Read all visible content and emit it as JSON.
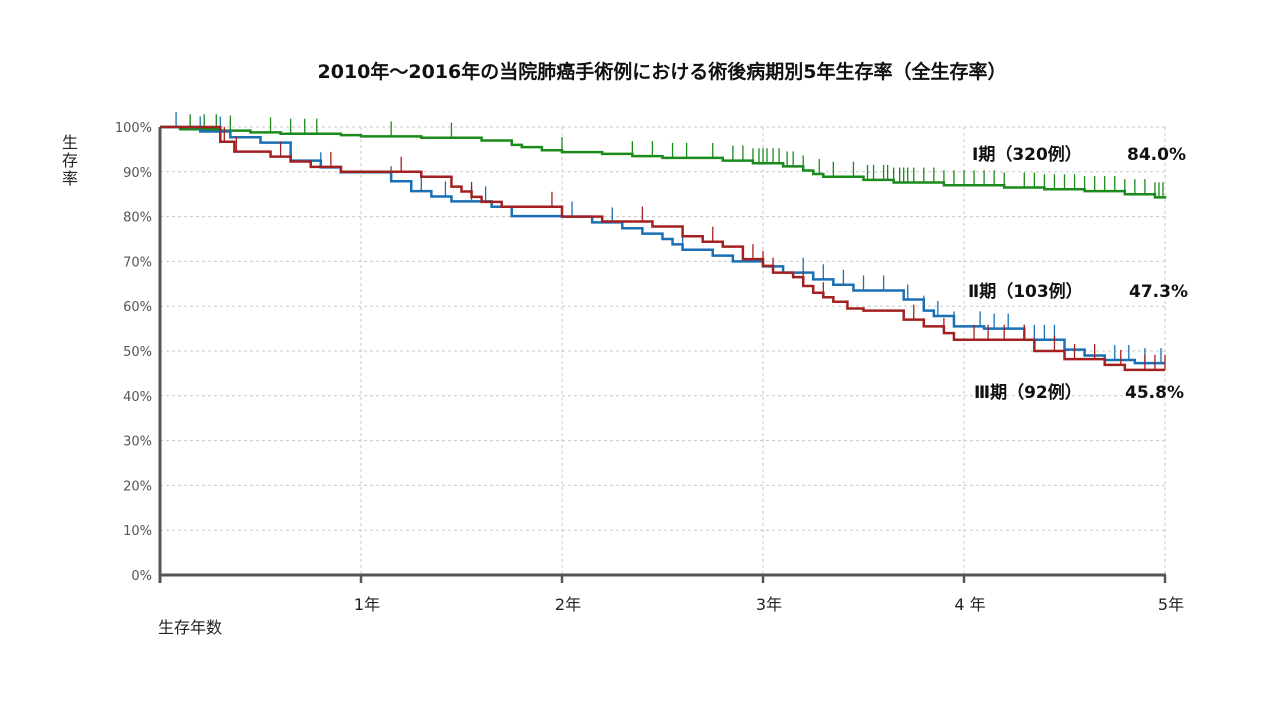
{
  "chart_data": {
    "type": "line",
    "title": "2010年～2016年の当院肺癌手術例における術後病期別5年生存率（全生存率）",
    "ylabel": "生存率",
    "xlabel": "生存年数",
    "ylim": [
      0,
      100
    ],
    "xlim": [
      0,
      5
    ],
    "y_ticks": [
      "0%",
      "10%",
      "20%",
      "30%",
      "40%",
      "50%",
      "60%",
      "70%",
      "80%",
      "90%",
      "100%"
    ],
    "x_ticks": [
      {
        "value": 1,
        "label": "1年"
      },
      {
        "value": 2,
        "label": "2年"
      },
      {
        "value": 3,
        "label": "3年"
      },
      {
        "value": 4,
        "label": "4 年"
      },
      {
        "value": 5,
        "label": "5年"
      }
    ],
    "grid": true,
    "series": [
      {
        "name": "Ⅰ期（320例）",
        "color": "#1a8a1a",
        "final_rate": "84.0%",
        "x": [
          0,
          0.1,
          0.3,
          0.45,
          0.6,
          0.9,
          1.0,
          1.3,
          1.6,
          1.75,
          1.8,
          1.9,
          2.0,
          2.2,
          2.35,
          2.5,
          2.8,
          2.95,
          3.1,
          3.2,
          3.25,
          3.3,
          3.5,
          3.65,
          3.9,
          4.2,
          4.4,
          4.6,
          4.8,
          4.95,
          5.0
        ],
        "y": [
          100,
          99.5,
          99.2,
          98.8,
          98.5,
          98.2,
          97.9,
          97.6,
          97.0,
          96.0,
          95.5,
          94.8,
          94.4,
          94.0,
          93.5,
          93.1,
          92.5,
          91.9,
          91.2,
          90.3,
          89.5,
          88.9,
          88.2,
          87.6,
          87.0,
          86.5,
          86.1,
          85.7,
          85.0,
          84.3,
          84.0
        ],
        "censor_x": [
          0.15,
          0.22,
          0.28,
          0.35,
          0.55,
          0.65,
          0.72,
          0.78,
          1.15,
          1.45,
          2.0,
          2.35,
          2.45,
          2.55,
          2.62,
          2.75,
          2.85,
          2.9,
          2.95,
          2.98,
          3.0,
          3.02,
          3.05,
          3.08,
          3.12,
          3.15,
          3.2,
          3.28,
          3.35,
          3.45,
          3.52,
          3.55,
          3.6,
          3.62,
          3.65,
          3.68,
          3.7,
          3.72,
          3.75,
          3.8,
          3.85,
          3.9,
          3.95,
          4.0,
          4.05,
          4.1,
          4.15,
          4.2,
          4.3,
          4.35,
          4.4,
          4.45,
          4.5,
          4.55,
          4.6,
          4.65,
          4.7,
          4.75,
          4.8,
          4.85,
          4.9,
          4.95,
          4.97,
          4.99
        ]
      },
      {
        "name": "Ⅱ期（103例）",
        "color": "#1a6fb5",
        "final_rate": "47.3%",
        "x": [
          0,
          0.2,
          0.35,
          0.5,
          0.65,
          0.8,
          0.9,
          1.0,
          1.15,
          1.25,
          1.35,
          1.45,
          1.55,
          1.65,
          1.75,
          2.0,
          2.15,
          2.3,
          2.4,
          2.5,
          2.55,
          2.6,
          2.75,
          2.85,
          3.0,
          3.1,
          3.25,
          3.35,
          3.45,
          3.55,
          3.7,
          3.8,
          3.85,
          3.95,
          4.1,
          4.3,
          4.5,
          4.6,
          4.7,
          4.85,
          5.0
        ],
        "y": [
          100,
          99,
          97.7,
          96.5,
          92.5,
          91,
          89.9,
          89.9,
          87.9,
          85.7,
          84.5,
          83.4,
          83.4,
          82.2,
          80.1,
          80.0,
          78.7,
          77.4,
          76.2,
          75.0,
          73.8,
          72.6,
          71.3,
          70.0,
          68.9,
          67.5,
          66.0,
          64.8,
          63.5,
          63.5,
          61.5,
          59.0,
          57.8,
          55.5,
          55.0,
          52.5,
          50.3,
          49.0,
          48.0,
          47.3,
          47.3
        ],
        "censor_x": [
          0.08,
          0.2,
          0.3,
          0.8,
          1.15,
          1.3,
          1.42,
          1.55,
          1.62,
          2.05,
          2.25,
          2.6,
          3.2,
          3.3,
          3.4,
          3.5,
          3.6,
          3.72,
          3.8,
          3.87,
          3.95,
          4.08,
          4.15,
          4.22,
          4.3,
          4.35,
          4.4,
          4.45,
          4.75,
          4.82,
          4.9,
          4.98
        ]
      },
      {
        "name": "Ⅲ期（92例）",
        "color": "#a32020",
        "final_rate": "45.8%",
        "x": [
          0,
          0.3,
          0.37,
          0.55,
          0.65,
          0.75,
          0.9,
          1.0,
          1.3,
          1.45,
          1.5,
          1.55,
          1.6,
          1.7,
          1.85,
          2.0,
          2.2,
          2.45,
          2.6,
          2.7,
          2.8,
          2.9,
          3.0,
          3.05,
          3.15,
          3.2,
          3.25,
          3.3,
          3.35,
          3.42,
          3.5,
          3.7,
          3.8,
          3.9,
          3.95,
          4.0,
          4.1,
          4.35,
          4.5,
          4.7,
          4.8,
          5.0
        ],
        "y": [
          100,
          96.7,
          94.5,
          93.4,
          92.3,
          91.1,
          90.0,
          90.0,
          88.9,
          86.7,
          85.6,
          84.4,
          83.3,
          82.2,
          82.2,
          80.0,
          78.9,
          77.8,
          75.6,
          74.4,
          73.3,
          70.5,
          69.0,
          67.5,
          66.5,
          64.5,
          63.0,
          62.0,
          61.0,
          59.5,
          59.0,
          57.0,
          55.5,
          54.0,
          52.5,
          52.5,
          52.5,
          50.0,
          48.2,
          46.9,
          45.8,
          45.8
        ],
        "censor_x": [
          0.32,
          0.38,
          0.6,
          0.85,
          1.2,
          1.55,
          1.95,
          2.4,
          2.75,
          2.95,
          3.0,
          3.05,
          3.2,
          3.3,
          3.75,
          3.9,
          4.05,
          4.12,
          4.2,
          4.3,
          4.45,
          4.55,
          4.65,
          4.78,
          4.9,
          4.95,
          5.0
        ]
      }
    ]
  }
}
